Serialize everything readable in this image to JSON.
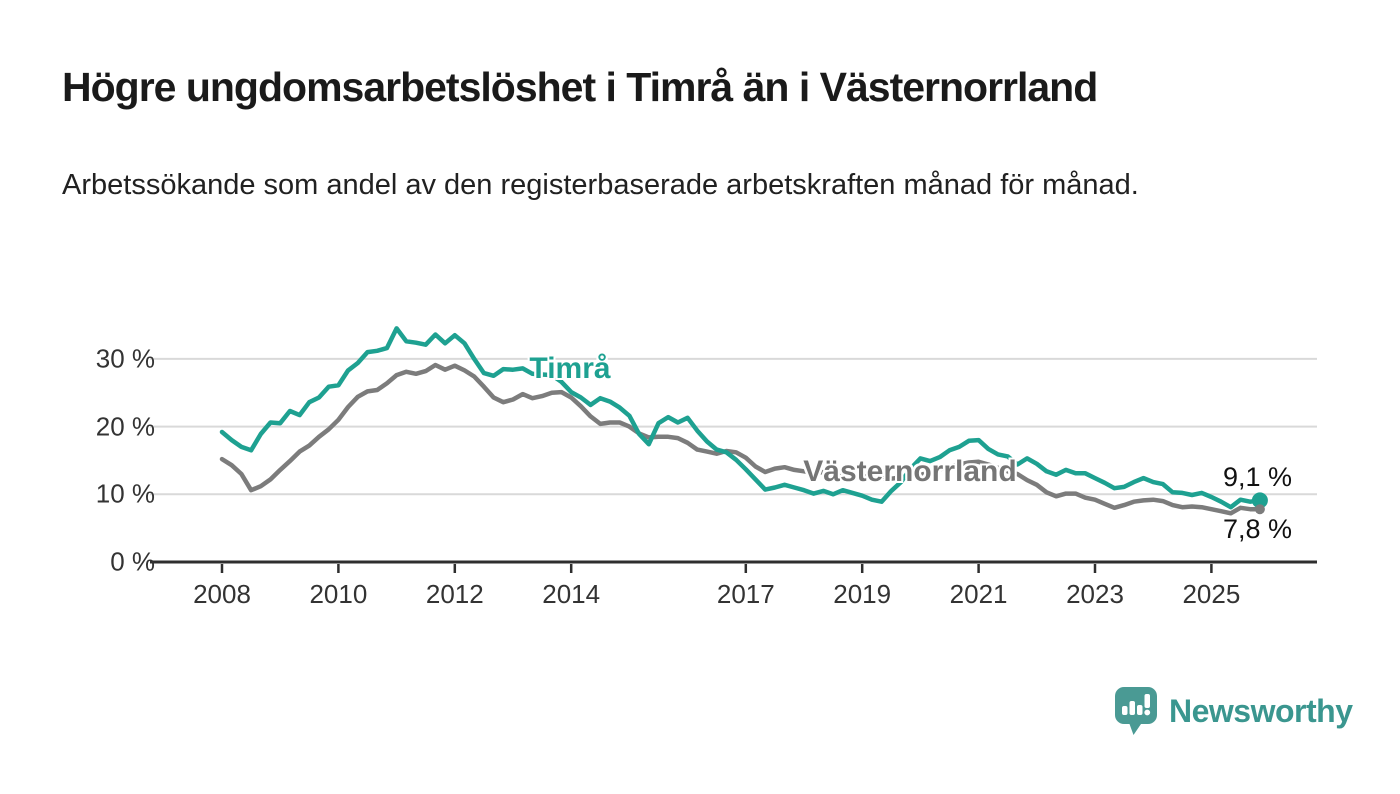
{
  "title": "Högre ungdomsarbetslöshet i Timrå än i Västernorrland",
  "subtitle": "Arbetssökande som andel av den registerbaserade arbetskraften månad för månad.",
  "chart_data": {
    "type": "line",
    "x_start_year": 2008,
    "x_step_months": 2,
    "x_end_label_note": "monthly series Jan 2008 – autumn 2025",
    "xlim": [
      2006.75,
      2026.8
    ],
    "ylim": [
      0,
      37
    ],
    "grid": "horizontal",
    "y_ticks": [
      {
        "value": 0,
        "label": "0 %"
      },
      {
        "value": 10,
        "label": "10 %"
      },
      {
        "value": 20,
        "label": "20 %"
      },
      {
        "value": 30,
        "label": "30 %"
      }
    ],
    "x_ticks": [
      {
        "value": 2008,
        "label": "2008"
      },
      {
        "value": 2010,
        "label": "2010"
      },
      {
        "value": 2012,
        "label": "2012"
      },
      {
        "value": 2014,
        "label": "2014"
      },
      {
        "value": 2017,
        "label": "2017"
      },
      {
        "value": 2019,
        "label": "2019"
      },
      {
        "value": 2021,
        "label": "2021"
      },
      {
        "value": 2023,
        "label": "2023"
      },
      {
        "value": 2025,
        "label": "2025"
      }
    ],
    "series": [
      {
        "name": "Timrå",
        "color": "#1ea191",
        "end_label": "9,1 %",
        "end_value": 9.1,
        "values": [
          19.2,
          18.0,
          17.0,
          16.5,
          18.9,
          20.6,
          20.5,
          22.3,
          21.7,
          23.6,
          24.3,
          25.9,
          26.1,
          28.3,
          29.4,
          31.0,
          31.2,
          31.6,
          34.5,
          32.6,
          32.4,
          32.1,
          33.6,
          32.3,
          33.5,
          32.3,
          30.0,
          27.9,
          27.5,
          28.5,
          28.4,
          28.6,
          27.8,
          27.7,
          27.6,
          26.6,
          25.1,
          24.3,
          23.2,
          24.2,
          23.7,
          22.8,
          21.6,
          18.9,
          17.4,
          20.5,
          21.4,
          20.6,
          21.3,
          19.4,
          17.8,
          16.6,
          16.2,
          15.1,
          13.7,
          12.2,
          10.7,
          11.0,
          11.4,
          11.0,
          10.6,
          10.1,
          10.5,
          10.0,
          10.6,
          10.2,
          9.8,
          9.2,
          8.9,
          10.5,
          11.8,
          13.8,
          15.3,
          14.9,
          15.5,
          16.5,
          17.0,
          17.9,
          18.0,
          16.7,
          15.9,
          15.6,
          14.4,
          15.3,
          14.5,
          13.4,
          12.9,
          13.6,
          13.1,
          13.1,
          12.4,
          11.7,
          10.9,
          11.1,
          11.8,
          12.4,
          11.8,
          11.5,
          10.3,
          10.2,
          9.9,
          10.2,
          9.6,
          8.9,
          8.1,
          9.2,
          8.9,
          9.1
        ]
      },
      {
        "name": "Västernorrland",
        "color": "#7c7c7c",
        "end_label": "7,8 %",
        "end_value": 7.8,
        "values": [
          15.2,
          14.3,
          13.0,
          10.6,
          11.2,
          12.2,
          13.6,
          14.9,
          16.3,
          17.2,
          18.5,
          19.6,
          21.0,
          22.9,
          24.4,
          25.2,
          25.4,
          26.4,
          27.6,
          28.1,
          27.8,
          28.2,
          29.1,
          28.4,
          29.0,
          28.3,
          27.4,
          25.9,
          24.3,
          23.6,
          24.0,
          24.8,
          24.2,
          24.5,
          25.0,
          25.1,
          24.3,
          23.0,
          21.5,
          20.4,
          20.6,
          20.6,
          20.0,
          19.0,
          18.4,
          18.5,
          18.5,
          18.3,
          17.6,
          16.6,
          16.3,
          16.0,
          16.4,
          16.2,
          15.4,
          14.1,
          13.3,
          13.8,
          14.0,
          13.6,
          13.4,
          13.1,
          13.3,
          12.9,
          13.0,
          12.8,
          12.7,
          12.5,
          12.4,
          12.3,
          12.5,
          12.6,
          12.9,
          13.2,
          13.7,
          14.1,
          14.4,
          14.7,
          14.8,
          14.4,
          13.9,
          13.4,
          13.0,
          12.1,
          11.4,
          10.3,
          9.7,
          10.1,
          10.1,
          9.5,
          9.2,
          8.6,
          8.0,
          8.4,
          8.9,
          9.1,
          9.2,
          9.0,
          8.4,
          8.1,
          8.2,
          8.1,
          7.8,
          7.5,
          7.2,
          8.0,
          7.8,
          7.8
        ]
      }
    ],
    "colors": {
      "grid": "#d9d9d9",
      "axis": "#2e2e2e",
      "tick_text": "#333333"
    }
  },
  "branding": {
    "logo_text": "Newsworthy",
    "logo_bubble_color": "#4a9a94",
    "logo_text_color": "#3a968f"
  }
}
